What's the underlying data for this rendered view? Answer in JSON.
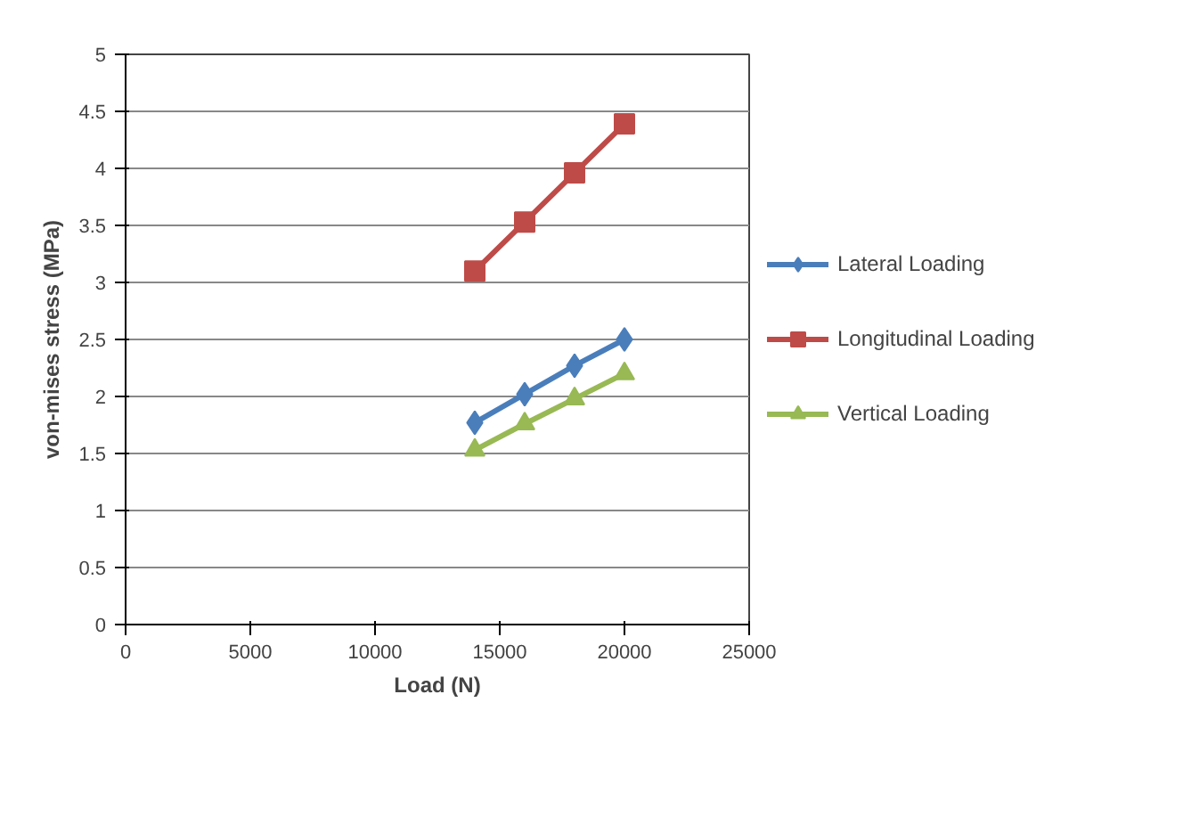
{
  "chart_data": {
    "type": "line",
    "xlabel": "Load (N)",
    "ylabel": "von-mises stress (MPa)",
    "x": [
      14000,
      16000,
      18000,
      20000
    ],
    "series": [
      {
        "name": "Lateral Loading",
        "color": "#4a7ebb",
        "marker": "diamond",
        "values": [
          1.77,
          2.02,
          2.27,
          2.5
        ]
      },
      {
        "name": "Longitudinal Loading",
        "color": "#be4b48",
        "marker": "square",
        "values": [
          3.1,
          3.53,
          3.96,
          4.39
        ]
      },
      {
        "name": "Vertical Loading",
        "color": "#98b954",
        "marker": "triangle",
        "values": [
          1.53,
          1.76,
          1.98,
          2.2
        ]
      }
    ],
    "xlim": [
      0,
      25000
    ],
    "xticks": [
      0,
      5000,
      10000,
      15000,
      20000,
      25000
    ],
    "ylim": [
      0,
      5
    ],
    "yticks": [
      0,
      0.5,
      1,
      1.5,
      2,
      2.5,
      3,
      3.5,
      4,
      4.5,
      5
    ],
    "grid": "y",
    "legend": "right",
    "line_style": "solid"
  }
}
